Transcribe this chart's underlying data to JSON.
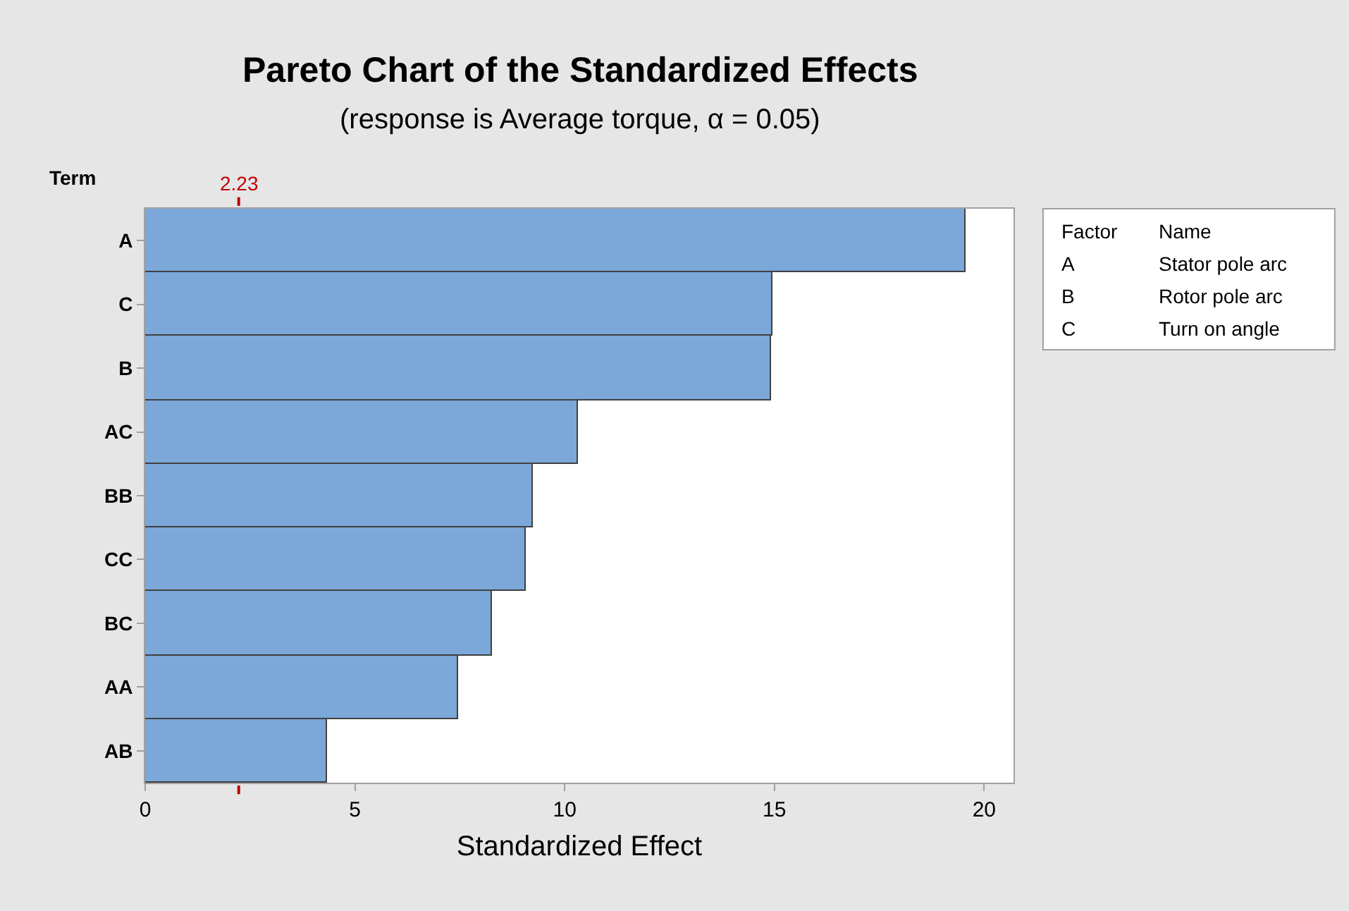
{
  "chart_data": {
    "type": "bar",
    "orientation": "horizontal",
    "title": "Pareto Chart of the Standardized Effects",
    "subtitle": "(response is Average torque, α = 0.05)",
    "xlabel": "Standardized Effect",
    "ylabel": "Term",
    "categories": [
      "A",
      "C",
      "B",
      "AC",
      "BB",
      "CC",
      "BC",
      "AA",
      "AB"
    ],
    "values": [
      19.56,
      14.96,
      14.93,
      10.3,
      9.25,
      9.06,
      8.28,
      7.45,
      4.32
    ],
    "color": "#7ba7d9",
    "xlim": [
      0,
      20.7
    ],
    "xticks": [
      0,
      5,
      10,
      15,
      20
    ],
    "ref_lines": [
      {
        "axis": "x",
        "value": 2.23,
        "label": "2.23",
        "color": "#c00000"
      }
    ],
    "annotations": [
      "Factor",
      "Name",
      "A",
      "Stator pole arc",
      "B",
      "Rotor pole arc",
      "C",
      "Turn on angle"
    ],
    "grid": false
  }
}
